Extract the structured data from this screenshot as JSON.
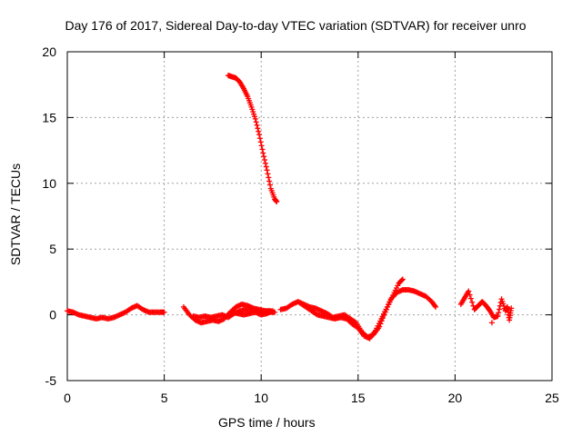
{
  "chart_data": {
    "type": "scatter",
    "title": "Day 176 of 2017, Sidereal Day-to-day VTEC variation (SDTVAR) for receiver unro",
    "xlabel": "GPS time / hours",
    "ylabel": "SDTVAR / TECUs",
    "xlim": [
      0,
      25
    ],
    "ylim": [
      -5,
      20
    ],
    "xticks": [
      0,
      5,
      10,
      15,
      20,
      25
    ],
    "yticks": [
      -5,
      0,
      5,
      10,
      15,
      20
    ],
    "grid": true,
    "marker": "+",
    "color": "#ff0000",
    "series": [
      {
        "name": "main",
        "points": [
          [
            0.0,
            0.3
          ],
          [
            0.3,
            0.2
          ],
          [
            0.6,
            0.0
          ],
          [
            0.9,
            -0.1
          ],
          [
            1.2,
            -0.2
          ],
          [
            1.5,
            -0.3
          ],
          [
            1.8,
            -0.2
          ],
          [
            2.1,
            -0.3
          ],
          [
            2.4,
            -0.2
          ],
          [
            2.7,
            0.0
          ],
          [
            3.0,
            0.2
          ],
          [
            3.3,
            0.5
          ],
          [
            3.6,
            0.7
          ],
          [
            3.9,
            0.4
          ],
          [
            4.2,
            0.2
          ],
          [
            4.5,
            0.2
          ],
          [
            4.8,
            0.2
          ],
          [
            5.0,
            0.2
          ],
          [
            6.0,
            0.6
          ],
          [
            6.3,
            0.0
          ],
          [
            6.6,
            -0.4
          ],
          [
            6.9,
            -0.6
          ],
          [
            7.2,
            -0.5
          ],
          [
            7.5,
            -0.4
          ],
          [
            7.8,
            -0.5
          ],
          [
            8.1,
            -0.3
          ],
          [
            8.4,
            0.2
          ],
          [
            8.7,
            0.6
          ],
          [
            9.0,
            0.8
          ],
          [
            9.3,
            0.7
          ],
          [
            9.6,
            0.5
          ],
          [
            9.9,
            0.4
          ],
          [
            10.2,
            0.3
          ],
          [
            10.5,
            0.3
          ],
          [
            6.5,
            -0.1
          ],
          [
            6.8,
            -0.2
          ],
          [
            7.1,
            -0.1
          ],
          [
            7.4,
            -0.2
          ],
          [
            7.7,
            -0.1
          ],
          [
            8.0,
            0.0
          ],
          [
            8.3,
            -0.2
          ],
          [
            8.6,
            0.1
          ],
          [
            8.9,
            0.3
          ],
          [
            9.2,
            0.4
          ],
          [
            9.5,
            0.4
          ],
          [
            9.8,
            0.3
          ],
          [
            10.1,
            0.2
          ],
          [
            10.4,
            0.2
          ],
          [
            10.7,
            0.2
          ],
          [
            8.5,
            0.2
          ],
          [
            8.8,
            0.1
          ],
          [
            9.1,
            0.0
          ],
          [
            9.4,
            0.1
          ],
          [
            9.7,
            0.2
          ],
          [
            10.0,
            0.0
          ],
          [
            10.3,
            0.1
          ],
          [
            10.6,
            0.3
          ],
          [
            11.0,
            0.4
          ],
          [
            11.3,
            0.5
          ],
          [
            11.6,
            0.8
          ],
          [
            11.9,
            1.0
          ],
          [
            12.2,
            0.8
          ],
          [
            12.5,
            0.6
          ],
          [
            12.8,
            0.5
          ],
          [
            13.1,
            0.3
          ],
          [
            13.4,
            0.1
          ],
          [
            13.7,
            -0.2
          ],
          [
            14.0,
            -0.1
          ],
          [
            14.3,
            0.0
          ],
          [
            14.6,
            -0.3
          ],
          [
            14.9,
            -0.6
          ],
          [
            15.2,
            -1.3
          ],
          [
            15.5,
            -1.7
          ],
          [
            15.8,
            -1.5
          ],
          [
            16.1,
            -0.9
          ],
          [
            16.4,
            0.2
          ],
          [
            16.7,
            1.2
          ],
          [
            17.0,
            1.7
          ],
          [
            17.3,
            1.9
          ],
          [
            17.6,
            1.9
          ],
          [
            17.9,
            1.8
          ],
          [
            18.2,
            1.6
          ],
          [
            18.5,
            1.4
          ],
          [
            18.8,
            1.0
          ],
          [
            19.0,
            0.6
          ],
          [
            12.0,
            0.9
          ],
          [
            12.3,
            0.6
          ],
          [
            12.6,
            0.3
          ],
          [
            12.9,
            0.0
          ],
          [
            13.2,
            -0.1
          ],
          [
            13.5,
            -0.2
          ],
          [
            13.8,
            -0.3
          ],
          [
            14.1,
            -0.2
          ],
          [
            14.4,
            -0.3
          ],
          [
            14.7,
            -0.7
          ],
          [
            15.0,
            -1.0
          ],
          [
            15.3,
            -1.6
          ],
          [
            15.6,
            -1.8
          ],
          [
            15.9,
            -1.2
          ],
          [
            16.2,
            -0.3
          ],
          [
            16.5,
            0.6
          ],
          [
            16.8,
            1.5
          ],
          [
            17.1,
            2.4
          ],
          [
            17.3,
            2.7
          ],
          [
            20.3,
            0.8
          ],
          [
            20.5,
            1.3
          ],
          [
            20.7,
            1.8
          ],
          [
            21.0,
            0.4
          ],
          [
            21.2,
            0.7
          ],
          [
            21.4,
            1.0
          ],
          [
            21.6,
            0.7
          ],
          [
            21.8,
            0.3
          ],
          [
            22.0,
            -0.2
          ],
          [
            22.2,
            -0.1
          ],
          [
            22.4,
            1.2
          ],
          [
            22.6,
            0.3
          ],
          [
            22.7,
            0.6
          ],
          [
            22.8,
            -0.4
          ],
          [
            22.9,
            0.5
          ],
          [
            21.9,
            -0.6
          ]
        ]
      },
      {
        "name": "spike",
        "points": [
          [
            8.3,
            18.2
          ],
          [
            8.5,
            18.1
          ],
          [
            8.7,
            18.0
          ],
          [
            8.9,
            17.7
          ],
          [
            9.1,
            17.2
          ],
          [
            9.3,
            16.6
          ],
          [
            9.5,
            15.8
          ],
          [
            9.7,
            14.9
          ],
          [
            9.9,
            13.7
          ],
          [
            10.1,
            12.3
          ],
          [
            10.3,
            11.0
          ],
          [
            10.5,
            9.6
          ],
          [
            10.7,
            8.8
          ],
          [
            10.8,
            8.6
          ]
        ]
      }
    ]
  }
}
